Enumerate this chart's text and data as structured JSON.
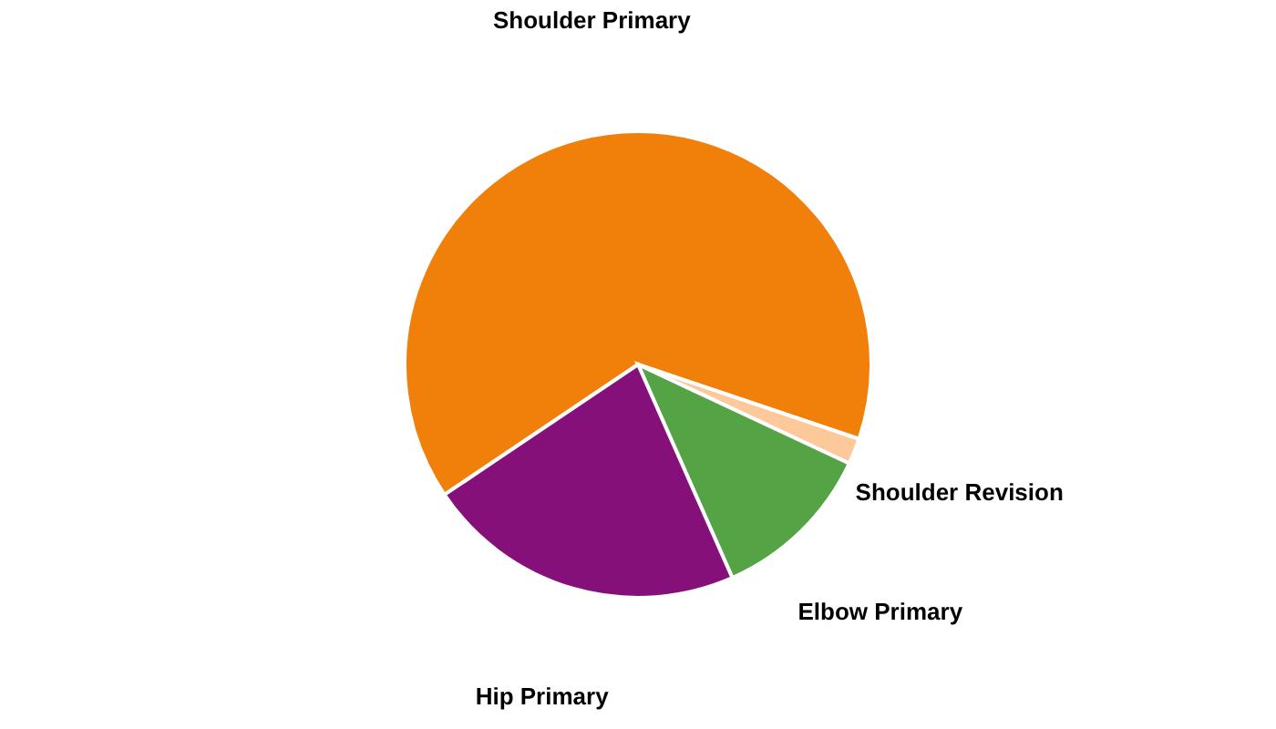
{
  "chart_data": {
    "type": "pie",
    "categories": [
      "Shoulder Primary",
      "Shoulder Revision",
      "Elbow Primary",
      "Hip Primary"
    ],
    "values": [
      64.6,
      1.8,
      11.4,
      22.2
    ],
    "colors": [
      "#f0800a",
      "#fdc89a",
      "#54a345",
      "#85107a"
    ],
    "legend": false
  }
}
